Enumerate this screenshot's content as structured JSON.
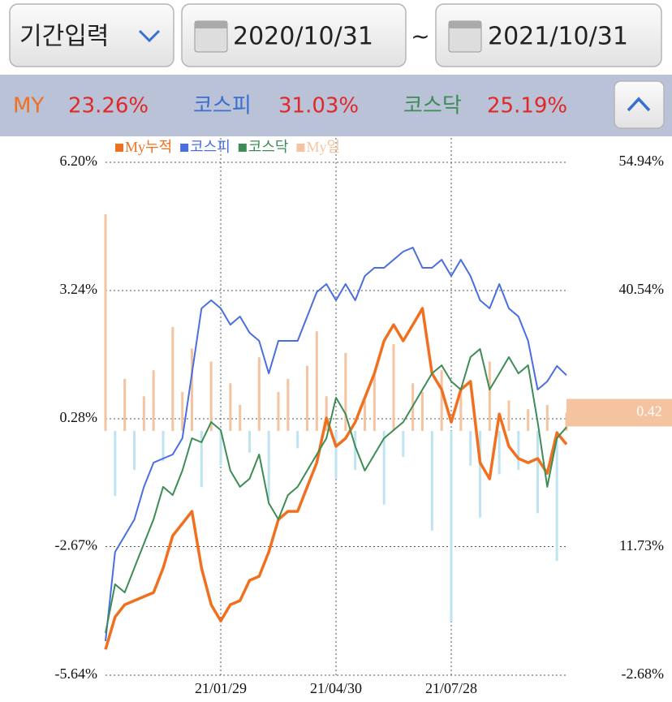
{
  "header": {
    "period_select": "기간입력",
    "start_date": "2020/10/31",
    "separator": "~",
    "end_date": "2021/10/31"
  },
  "summary": [
    {
      "name": "MY",
      "value": "23.26%"
    },
    {
      "name": "코스피",
      "value": "31.03%"
    },
    {
      "name": "코스닥",
      "value": "25.19%"
    }
  ],
  "chart_data": {
    "type": "line",
    "categories": [
      null,
      null,
      null,
      null,
      null,
      null,
      null,
      null,
      null,
      null,
      null,
      null,
      "21/01/29",
      null,
      null,
      null,
      null,
      null,
      null,
      null,
      null,
      null,
      null,
      null,
      "21/04/30",
      null,
      null,
      null,
      null,
      null,
      null,
      null,
      null,
      null,
      null,
      null,
      "21/07/28",
      null,
      null,
      null,
      null,
      null,
      null,
      null,
      null,
      null,
      null,
      null,
      null
    ],
    "series": [
      {
        "name": "My누적",
        "color": "#f07020",
        "axis": "y2",
        "values": [
          0.22,
          3.87,
          5.24,
          5.7,
          6.15,
          6.61,
          9.35,
          12.99,
          14.36,
          15.73,
          9.35,
          5.24,
          3.42,
          5.24,
          5.7,
          7.98,
          8.43,
          11.17,
          14.81,
          15.73,
          15.73,
          18.47,
          21.2,
          26.22,
          23.03,
          23.93,
          25.76,
          28.49,
          31.23,
          34.88,
          36.7,
          34.88,
          36.7,
          38.53,
          31.23,
          29.41,
          25.76,
          29.41,
          30.32,
          21.2,
          19.38,
          26.67,
          23.03,
          21.66,
          21.2,
          21.66,
          19.99,
          24.55,
          23.26
        ]
      },
      {
        "name": "코스피",
        "color": "#4a6ee0",
        "axis": "y2",
        "values": [
          1.15,
          11.17,
          12.99,
          14.81,
          18.47,
          21.2,
          21.66,
          22.12,
          23.94,
          31.23,
          38.53,
          39.44,
          38.53,
          36.7,
          37.62,
          35.79,
          34.88,
          31.23,
          34.88,
          34.88,
          34.88,
          37.62,
          40.35,
          41.26,
          39.44,
          41.26,
          39.44,
          42.17,
          43.09,
          43.09,
          44.0,
          44.91,
          45.37,
          43.09,
          43.09,
          44.0,
          42.17,
          44.0,
          42.17,
          39.44,
          38.53,
          41.26,
          38.53,
          37.62,
          34.88,
          29.41,
          30.32,
          32.06,
          31.03
        ]
      },
      {
        "name": "코스닥",
        "color": "#3d8c55",
        "axis": "y2",
        "values": [
          2.06,
          7.53,
          6.62,
          9.36,
          12.09,
          14.83,
          18.48,
          17.56,
          20.3,
          23.94,
          23.49,
          25.76,
          24.85,
          20.3,
          18.48,
          19.39,
          22.12,
          16.65,
          14.83,
          17.56,
          18.48,
          20.3,
          22.12,
          23.94,
          28.5,
          26.67,
          23.03,
          20.3,
          22.12,
          23.94,
          24.85,
          25.76,
          27.58,
          29.41,
          31.23,
          32.14,
          30.32,
          29.41,
          33.06,
          33.97,
          29.41,
          31.23,
          33.06,
          31.23,
          32.14,
          25.76,
          18.48,
          23.94,
          25.19
        ]
      },
      {
        "name": "My일",
        "color": "#f4c3a0",
        "negative_color": "#bfe3f0",
        "type": "bar",
        "values": [
          5.0,
          -1.5,
          1.2,
          -0.9,
          0.8,
          1.4,
          -0.7,
          2.4,
          0.9,
          1.9,
          -1.3,
          1.6,
          -0.8,
          1.1,
          0.6,
          -0.5,
          1.7,
          -1.6,
          0.9,
          1.2,
          -0.4,
          1.5,
          2.3,
          0.8,
          -1.1,
          1.8,
          -0.9,
          0.7,
          1.3,
          -1.7,
          2.0,
          -0.6,
          1.1,
          0.9,
          -2.3,
          1.4,
          -4.4,
          1.0,
          -0.8,
          -2.0,
          1.6,
          -1.0,
          0.7,
          -0.9,
          0.5,
          -1.9,
          0.6,
          -3.0,
          0.42
        ]
      }
    ],
    "ylim": [
      -5.64,
      6.2
    ],
    "yticks": [
      {
        "value": -5.64,
        "label": "-5.64%"
      },
      {
        "value": -2.67,
        "label": "-2.67%"
      },
      {
        "value": 0.28,
        "label": "0.28%"
      },
      {
        "value": 3.24,
        "label": "3.24%"
      },
      {
        "value": 6.2,
        "label": "6.20%"
      }
    ],
    "y2lim": [
      -2.68,
      54.94
    ],
    "y2ticks": [
      {
        "value": -2.68,
        "label": "-2.68%"
      },
      {
        "value": 11.73,
        "label": "11.73%"
      },
      {
        "value": 40.54,
        "label": "40.54%"
      },
      {
        "value": 54.94,
        "label": "54.94%"
      }
    ],
    "grid": true
  }
}
